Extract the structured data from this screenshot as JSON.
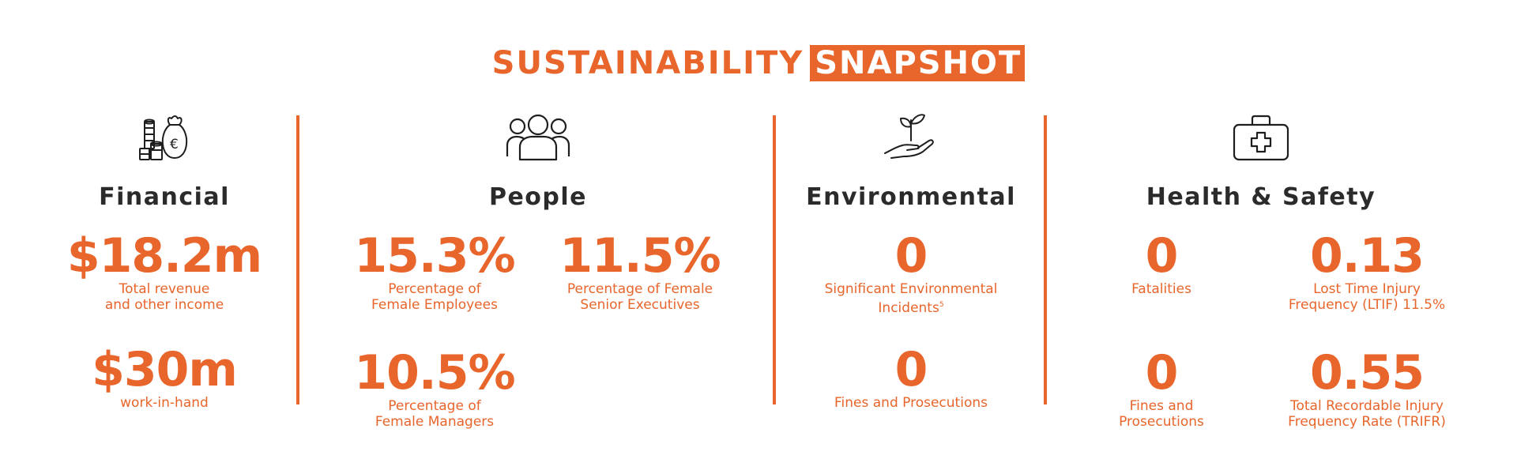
{
  "title": {
    "main": "SUSTAINABILITY",
    "highlight": "SNAPSHOT"
  },
  "accent_color": "#e8652b",
  "heading_color": "#2b2b2b",
  "sections": {
    "financial": {
      "icon": "money-bag-coins-icon",
      "heading": "Financial",
      "stats": [
        {
          "value": "$18.2m",
          "label": "Total revenue\nand other income"
        },
        {
          "value": "$30m",
          "label": "work-in-hand"
        }
      ]
    },
    "people": {
      "icon": "people-group-icon",
      "heading": "People",
      "stats": [
        {
          "value": "15.3%",
          "label": "Percentage of\nFemale Employees"
        },
        {
          "value": "11.5%",
          "label": "Percentage of Female\nSenior Executives"
        },
        {
          "value": "10.5%",
          "label": "Percentage of\nFemale Managers"
        }
      ]
    },
    "environmental": {
      "icon": "hand-plant-icon",
      "heading": "Environmental",
      "stats": [
        {
          "value": "0",
          "label": "Significant Environmental\nIncidents",
          "footnote": "5"
        },
        {
          "value": "0",
          "label": "Fines and Prosecutions"
        }
      ]
    },
    "health_safety": {
      "icon": "first-aid-kit-icon",
      "heading": "Health & Safety",
      "stats": [
        {
          "value": "0",
          "label": "Fatalities"
        },
        {
          "value": "0.13",
          "label": "Lost Time Injury\nFrequency (LTIF) 11.5%"
        },
        {
          "value": "0",
          "label": "Fines and\nProsecutions"
        },
        {
          "value": "0.55",
          "label": "Total Recordable Injury\nFrequency Rate (TRIFR)"
        }
      ]
    }
  }
}
